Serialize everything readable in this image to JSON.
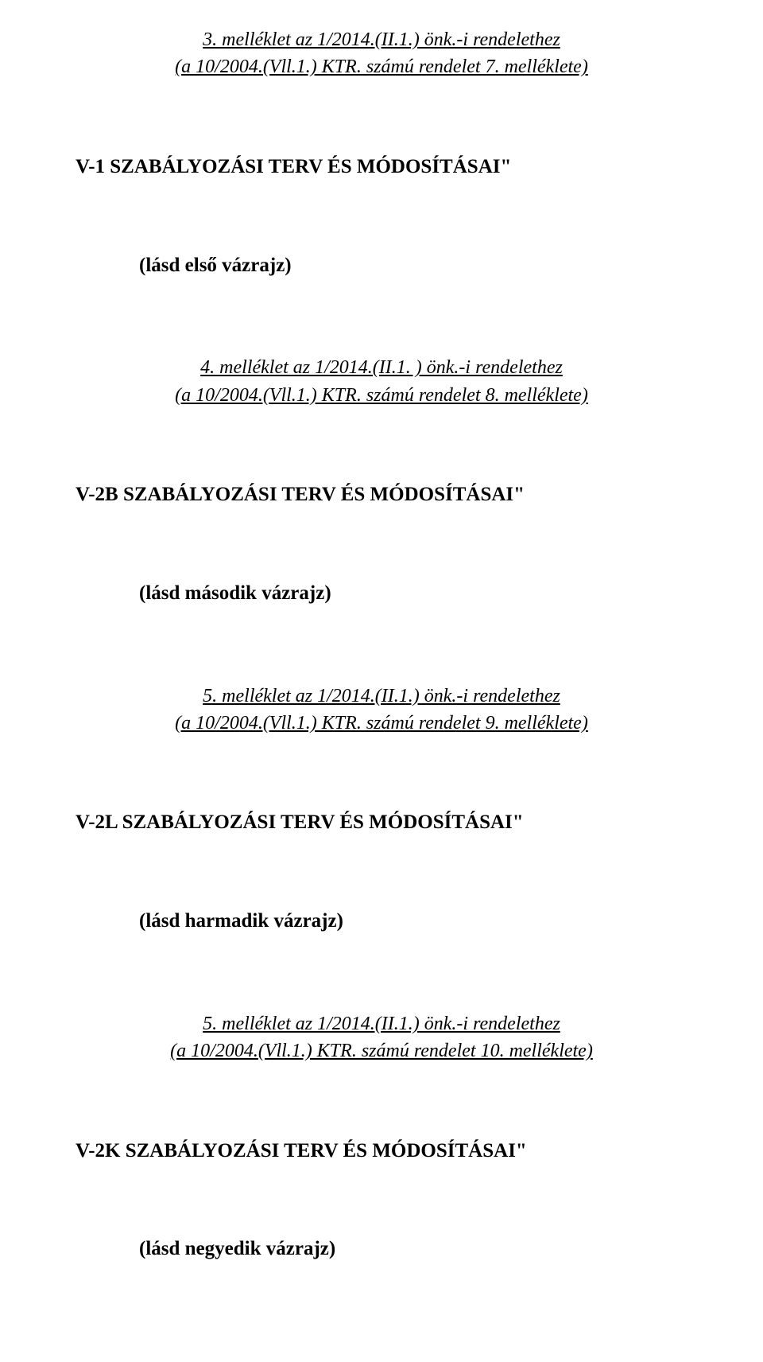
{
  "blocks": [
    {
      "ref_line1": "3. melléklet az 1/2014.(II.1.) önk.-i rendelethez",
      "ref_line2": "(a 10/2004.(Vll.1.) KTR. számú rendelet 7. melléklete)",
      "title": "V-1 SZABÁLYOZÁSI TERV ÉS MÓDOSÍTÁSAI\"",
      "paren": "(lásd első vázrajz)"
    },
    {
      "ref_line1": "4. melléklet az 1/2014.(II.1. ) önk.-i rendelethez",
      "ref_line2": "(a 10/2004.(Vll.1.) KTR. számú rendelet 8. melléklete)",
      "title": "V-2B SZABÁLYOZÁSI TERV ÉS MÓDOSÍTÁSAI\"",
      "paren": "(lásd második vázrajz)"
    },
    {
      "ref_line1": "5. melléklet az 1/2014.(II.1.) önk.-i rendelethez",
      "ref_line2": "(a 10/2004.(Vll.1.) KTR. számú rendelet 9. melléklete)",
      "title": "V-2L SZABÁLYOZÁSI TERV ÉS MÓDOSÍTÁSAI\"",
      "paren": "(lásd harmadik vázrajz)"
    },
    {
      "ref_line1": "5. melléklet az 1/2014.(II.1.) önk.-i rendelethez",
      "ref_line2": "(a 10/2004.(Vll.1.) KTR. számú rendelet 10. melléklete)",
      "title": "V-2K SZABÁLYOZÁSI TERV ÉS MÓDOSÍTÁSAI\"",
      "paren": "(lásd negyedik vázrajz)"
    }
  ]
}
